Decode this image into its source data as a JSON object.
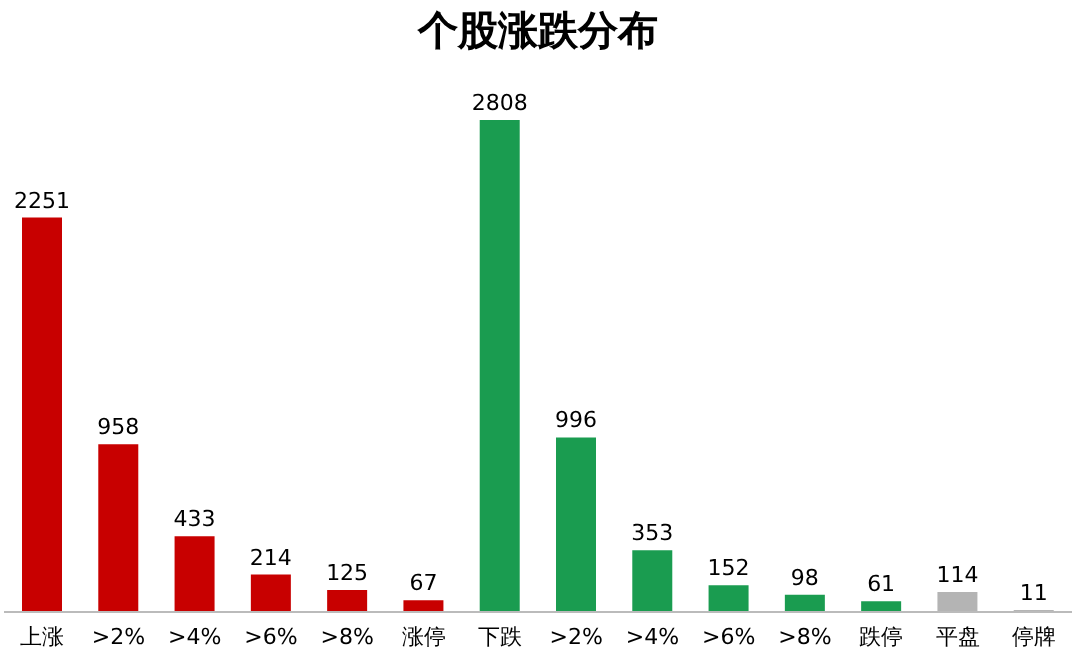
{
  "chart_data": {
    "type": "bar",
    "title": "个股涨跌分布",
    "categories": [
      "上涨",
      ">2%",
      ">4%",
      ">6%",
      ">8%",
      "涨停",
      "下跌",
      ">2%",
      ">4%",
      ">6%",
      ">8%",
      "跌停",
      "平盘",
      "停牌"
    ],
    "values": [
      2251,
      958,
      433,
      214,
      125,
      67,
      2808,
      996,
      353,
      152,
      98,
      61,
      114,
      11
    ],
    "colors": [
      "#c80000",
      "#c80000",
      "#c80000",
      "#c80000",
      "#c80000",
      "#c80000",
      "#1a9c50",
      "#1a9c50",
      "#1a9c50",
      "#1a9c50",
      "#1a9c50",
      "#1a9c50",
      "#b4b4b4",
      "#b4b4b4"
    ],
    "data_labels": true,
    "grid": false,
    "legend": false
  }
}
